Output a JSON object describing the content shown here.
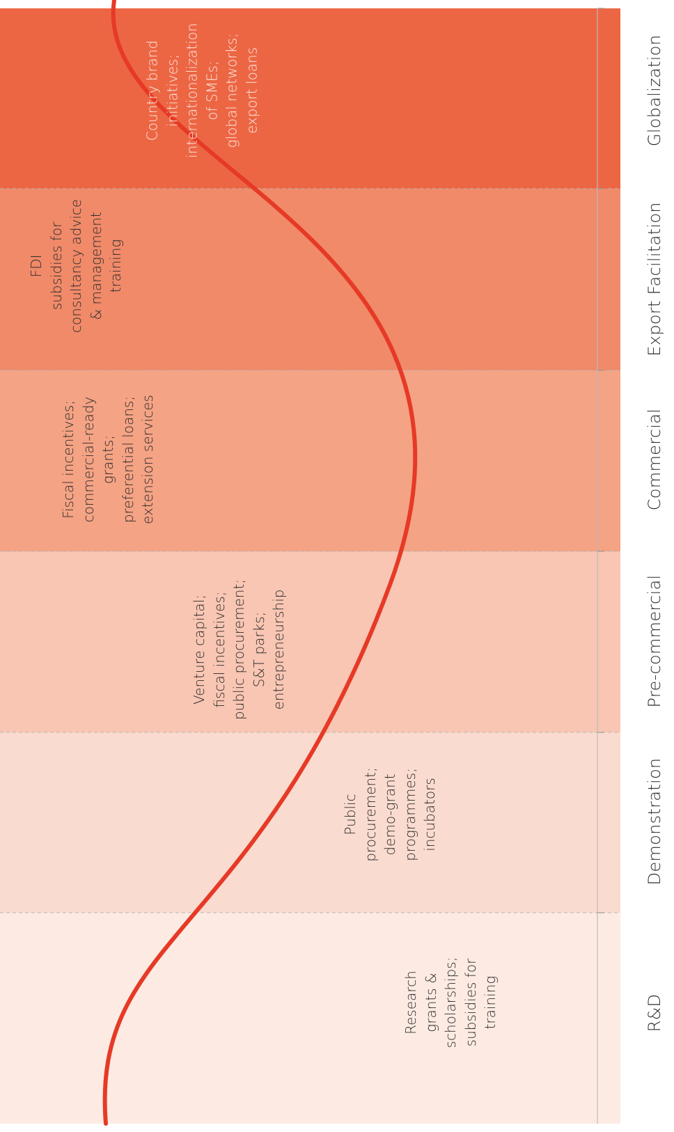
{
  "stages": [
    {
      "label": "R&D",
      "text": "Research\ngrants &\nscholarships;\nsubsidies for\ntraining",
      "color": "#fdebe3",
      "text_color": "#2b2b2b"
    },
    {
      "label": "Demonstration",
      "text": "Public\nprocurement;\ndemo-grant\nprogrammes;\nincubators",
      "color": "#fadbcf",
      "text_color": "#2b2b2b"
    },
    {
      "label": "Pre-commercial",
      "text": "Venture capital;\nfiscal incentives;\npublic procurement;\nS&T parks;\nentrepreneurship",
      "color": "#f8c6b3",
      "text_color": "#2b2b2b"
    },
    {
      "label": "Commercial",
      "text": "Fiscal incentives;\ncommercial-ready\ngrants;\npreferential loans;\nextension services",
      "color": "#f4a384",
      "text_color": "#2b2b2b"
    },
    {
      "label": "Export Facilitation",
      "text": "FDI\nsubsidies for\nconsultancy advice\n& management\ntraining",
      "color": "#f08a69",
      "text_color": "#2b2b2b"
    },
    {
      "label": "Globalization",
      "text": "Country brand\ninitiatives;\ninternationalization\nof SMEs;\nglobal networks;\nexport loans",
      "color": "#ec6644",
      "text_color": "#fde9df"
    }
  ],
  "colors": {
    "curve": "#e63a26",
    "divider": "#b7b7b7"
  }
}
